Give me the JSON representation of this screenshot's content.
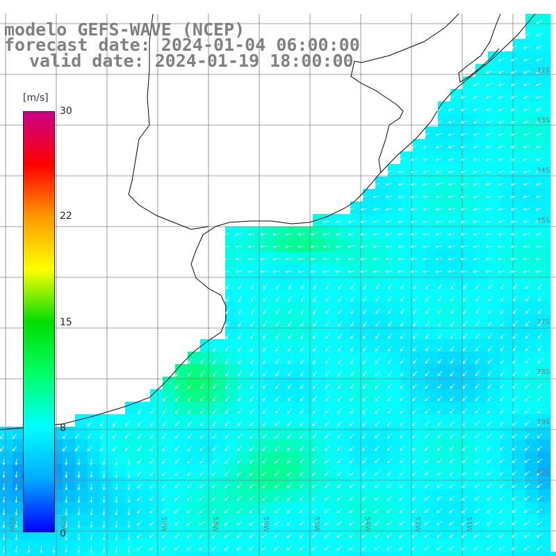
{
  "title": {
    "line1": "modelo GEFS-WAVE (NCEP)",
    "line2": "forecast date: 2024-01-04 06:00:00",
    "line3": "valid date: 2024-01-19 18:00:00"
  },
  "colorbar": {
    "unit": "[m/s]",
    "ticks": [
      "30",
      "22",
      "15",
      "8",
      "0"
    ],
    "min": 0,
    "max": 30,
    "colors": [
      "#0000ff",
      "#00aaff",
      "#00ffff",
      "#00ff66",
      "#00dd00",
      "#ffff00",
      "#ff9900",
      "#ff0000",
      "#cc0088"
    ]
  },
  "lat_labels": [
    "32S",
    "33S",
    "34S",
    "35S",
    "37S",
    "38S",
    "39S",
    "40S"
  ],
  "lon_labels": [
    "61W",
    "60W",
    "59W",
    "58W",
    "56W",
    "55W",
    "54W",
    "52W",
    "51W"
  ],
  "colors": {
    "land": "#ffffff",
    "coast": "#000000",
    "grid": "#808080",
    "arrow": "#ffffff"
  }
}
